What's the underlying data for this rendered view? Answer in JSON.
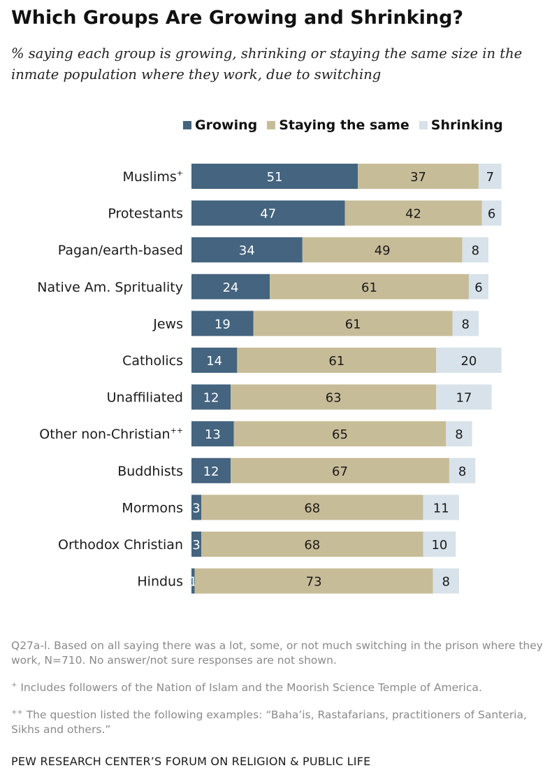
{
  "title": "Which Groups Are Growing and Shrinking?",
  "subtitle": "% saying each group is growing, shrinking or staying the same size in the inmate population where they work, due to switching",
  "colors": {
    "growing": "#44647f",
    "same": "#c7bc98",
    "shrinking": "#d7e2ea"
  },
  "chart_data": {
    "type": "bar",
    "orientation": "horizontal",
    "stacked": true,
    "title": "Which Groups Are Growing and Shrinking?",
    "legend_position": "top",
    "grid": false,
    "xlim": [
      0,
      100
    ],
    "categories": [
      "Muslims",
      "Protestants",
      "Pagan/earth-based",
      "Native Am. Sprituality",
      "Jews",
      "Catholics",
      "Unaffiliated",
      "Other non-Christian",
      "Buddhists",
      "Mormons",
      "Orthodox Christian",
      "Hindus"
    ],
    "category_superscripts": [
      "+",
      "",
      "",
      "",
      "",
      "",
      "",
      "++",
      "",
      "",
      "",
      ""
    ],
    "series": [
      {
        "name": "Growing",
        "values": [
          51,
          47,
          34,
          24,
          19,
          14,
          12,
          13,
          12,
          3,
          3,
          1
        ]
      },
      {
        "name": "Staying the same",
        "values": [
          37,
          42,
          49,
          61,
          61,
          61,
          63,
          65,
          67,
          68,
          68,
          73
        ]
      },
      {
        "name": "Shrinking",
        "values": [
          7,
          6,
          8,
          6,
          8,
          20,
          17,
          8,
          8,
          11,
          10,
          8
        ]
      }
    ]
  },
  "notes": {
    "n1": "Q27a-l. Based on all saying there was a lot, some, or not much switching in the prison where they work, N=710. No answer/not sure responses are not shown.",
    "n2_mark": "+",
    "n2": " Includes followers of the Nation of Islam and the Moorish Science Temple of America.",
    "n3_mark": "++",
    "n3": " The question listed the following examples: “Baha’is, Rastafarians, practitioners of Santeria, Sikhs and others.”"
  },
  "source": "PEW RESEARCH CENTER’S FORUM ON RELIGION & PUBLIC LIFE"
}
